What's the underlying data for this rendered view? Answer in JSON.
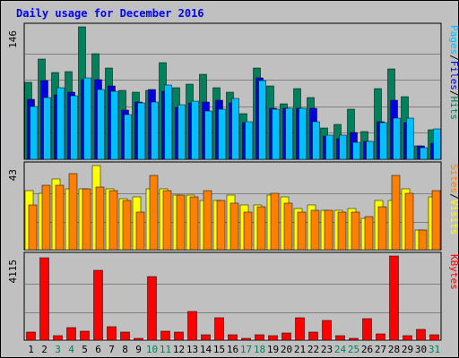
{
  "chart_data": {
    "type": "bar",
    "title": "Daily usage for December 2016",
    "colors": {
      "hits": "#00805c",
      "files": "#0000d8",
      "pages": "#00c0ff",
      "visits": "#ffff00",
      "sites": "#ff8000",
      "kbytes": "#ff0000",
      "background": "#c0c0c0",
      "grid": "#808080",
      "title": "#0000ff",
      "weekend_label": "#00805c",
      "weekday_label": "#000000"
    },
    "days": [
      "1",
      "2",
      "3",
      "4",
      "5",
      "6",
      "7",
      "8",
      "9",
      "10",
      "11",
      "12",
      "13",
      "14",
      "15",
      "16",
      "17",
      "18",
      "19",
      "20",
      "21",
      "22",
      "23",
      "24",
      "25",
      "26",
      "27",
      "28",
      "29",
      "30",
      "31"
    ],
    "weekend_days": [
      "3",
      "4",
      "10",
      "11",
      "17",
      "18",
      "24",
      "25",
      "31"
    ],
    "panels": [
      {
        "id": "hits-files-pages",
        "max_label": "146",
        "ymax": 146,
        "legend": [
          {
            "text": "Pages",
            "key": "pages"
          },
          {
            "text": "/",
            "key": "sep"
          },
          {
            "text": "Files",
            "key": "files"
          },
          {
            "text": "/",
            "key": "sep"
          },
          {
            "text": "Hits",
            "key": "hits"
          }
        ],
        "series": [
          {
            "name": "Hits",
            "key": "hits",
            "values": [
              85,
              110,
              96,
              97,
              146,
              116,
              101,
              76,
              74,
              76,
              107,
              79,
              83,
              94,
              79,
              74,
              50,
              101,
              81,
              61,
              78,
              68,
              35,
              38,
              55,
              31,
              78,
              100,
              69,
              15,
              33
            ]
          },
          {
            "name": "Files",
            "key": "files",
            "values": [
              66,
              87,
              71,
              74,
              88,
              88,
              81,
              54,
              63,
              77,
              75,
              57,
              62,
              63,
              65,
              62,
              40,
              90,
              56,
              56,
              56,
              56,
              26,
              23,
              30,
              20,
              41,
              65,
              40,
              15,
              18
            ]
          },
          {
            "name": "Pages",
            "key": "pages",
            "values": [
              58,
              68,
              79,
              70,
              90,
              77,
              75,
              49,
              62,
              63,
              82,
              60,
              64,
              53,
              55,
              67,
              41,
              87,
              55,
              56,
              56,
              41,
              27,
              27,
              19,
              20,
              40,
              45,
              45,
              13,
              34
            ]
          }
        ]
      },
      {
        "id": "visits-sites",
        "max_label": "43",
        "ymax": 43,
        "legend": [
          {
            "text": "Sites",
            "key": "sites"
          },
          {
            "text": "/",
            "key": "sep"
          },
          {
            "text": "Visits",
            "key": "visits"
          }
        ],
        "series": [
          {
            "name": "Visits",
            "key": "visits",
            "values": [
              30,
              29,
              36,
              31,
              31,
              43,
              31,
              26,
              27,
              31,
              31,
              28,
              28,
              25,
              25,
              28,
              23,
              23,
              28,
              27,
              21,
              23,
              20,
              20,
              21,
              16,
              25,
              25,
              31,
              10,
              27
            ]
          },
          {
            "name": "Sites",
            "key": "sites",
            "values": [
              23,
              33,
              33,
              39,
              31,
              32,
              30,
              25,
              19,
              38,
              30,
              28,
              27,
              30,
              25,
              24,
              19,
              22,
              29,
              24,
              19,
              20,
              20,
              19,
              19,
              17,
              22,
              38,
              29,
              10,
              30
            ]
          }
        ]
      },
      {
        "id": "kbytes",
        "max_label": "4115",
        "ymax": 4115,
        "legend": [
          {
            "text": "KBytes",
            "key": "kbytes"
          }
        ],
        "series": [
          {
            "name": "KBytes",
            "key": "kbytes",
            "values": [
              400,
              4027,
              207,
              600,
              447,
              3400,
              660,
              393,
              87,
              3100,
              427,
              413,
              1380,
              267,
              1093,
              267,
              87,
              267,
              207,
              340,
              1093,
              393,
              967,
              207,
              107,
              1060,
              300,
              4115,
              207,
              520,
              280
            ]
          }
        ]
      }
    ]
  }
}
